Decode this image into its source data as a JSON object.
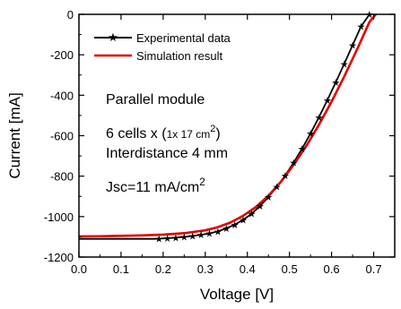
{
  "chart_data": {
    "type": "line",
    "title": "",
    "xlabel": "Voltage [V]",
    "ylabel": "Current [mA]",
    "xlim": [
      0.0,
      0.75
    ],
    "ylim": [
      -1200,
      0
    ],
    "grid": false,
    "legend_position": "top-left",
    "xticks": [
      {
        "v": 0.0,
        "label": "0.0"
      },
      {
        "v": 0.1,
        "label": "0.1"
      },
      {
        "v": 0.2,
        "label": "0.2"
      },
      {
        "v": 0.3,
        "label": "0.3"
      },
      {
        "v": 0.4,
        "label": "0.4"
      },
      {
        "v": 0.5,
        "label": "0.5"
      },
      {
        "v": 0.6,
        "label": "0.6"
      },
      {
        "v": 0.7,
        "label": "0.7"
      }
    ],
    "yticks": [
      {
        "v": 0,
        "label": "0"
      },
      {
        "v": -200,
        "label": "-200"
      },
      {
        "v": -400,
        "label": "-400"
      },
      {
        "v": -600,
        "label": "-600"
      },
      {
        "v": -800,
        "label": "-800"
      },
      {
        "v": -1000,
        "label": "-1000"
      },
      {
        "v": -1200,
        "label": "-1200"
      }
    ],
    "series": [
      {
        "name": "Experimental data",
        "color": "#000000",
        "marker": "star",
        "line_only_x": [
          0.0,
          0.18
        ],
        "line_only_y": [
          -1110,
          -1110
        ],
        "x": [
          0.19,
          0.21,
          0.23,
          0.25,
          0.27,
          0.29,
          0.31,
          0.33,
          0.35,
          0.37,
          0.39,
          0.41,
          0.43,
          0.45,
          0.47,
          0.49,
          0.51,
          0.53,
          0.55,
          0.57,
          0.59,
          0.61,
          0.63,
          0.65,
          0.67,
          0.69
        ],
        "y": [
          -1109,
          -1107,
          -1104,
          -1100,
          -1096,
          -1090,
          -1083,
          -1073,
          -1058,
          -1040,
          -1016,
          -986,
          -948,
          -903,
          -853,
          -796,
          -733,
          -664,
          -589,
          -509,
          -424,
          -336,
          -245,
          -152,
          -60,
          0
        ]
      },
      {
        "name": "Simulation result",
        "color": "#e00000",
        "marker": "none",
        "x": [
          0.0,
          0.05,
          0.1,
          0.15,
          0.2,
          0.25,
          0.3,
          0.33,
          0.36,
          0.39,
          0.42,
          0.45,
          0.48,
          0.51,
          0.54,
          0.57,
          0.6,
          0.63,
          0.66,
          0.69,
          0.705
        ],
        "y": [
          -1098,
          -1097,
          -1095,
          -1093,
          -1089,
          -1082,
          -1068,
          -1052,
          -1029,
          -996,
          -953,
          -897,
          -827,
          -744,
          -651,
          -546,
          -432,
          -308,
          -176,
          -38,
          0
        ]
      }
    ],
    "annotations": {
      "line1": "Parallel module",
      "line2_pre": "6 cells x (",
      "line2_mid": "1x 17 cm",
      "line2_sup": "2",
      "line2_post": ")",
      "line3": "Interdistance 4 mm",
      "line4_pre": "Jsc=11 mA/cm",
      "line4_sup": "2"
    }
  }
}
